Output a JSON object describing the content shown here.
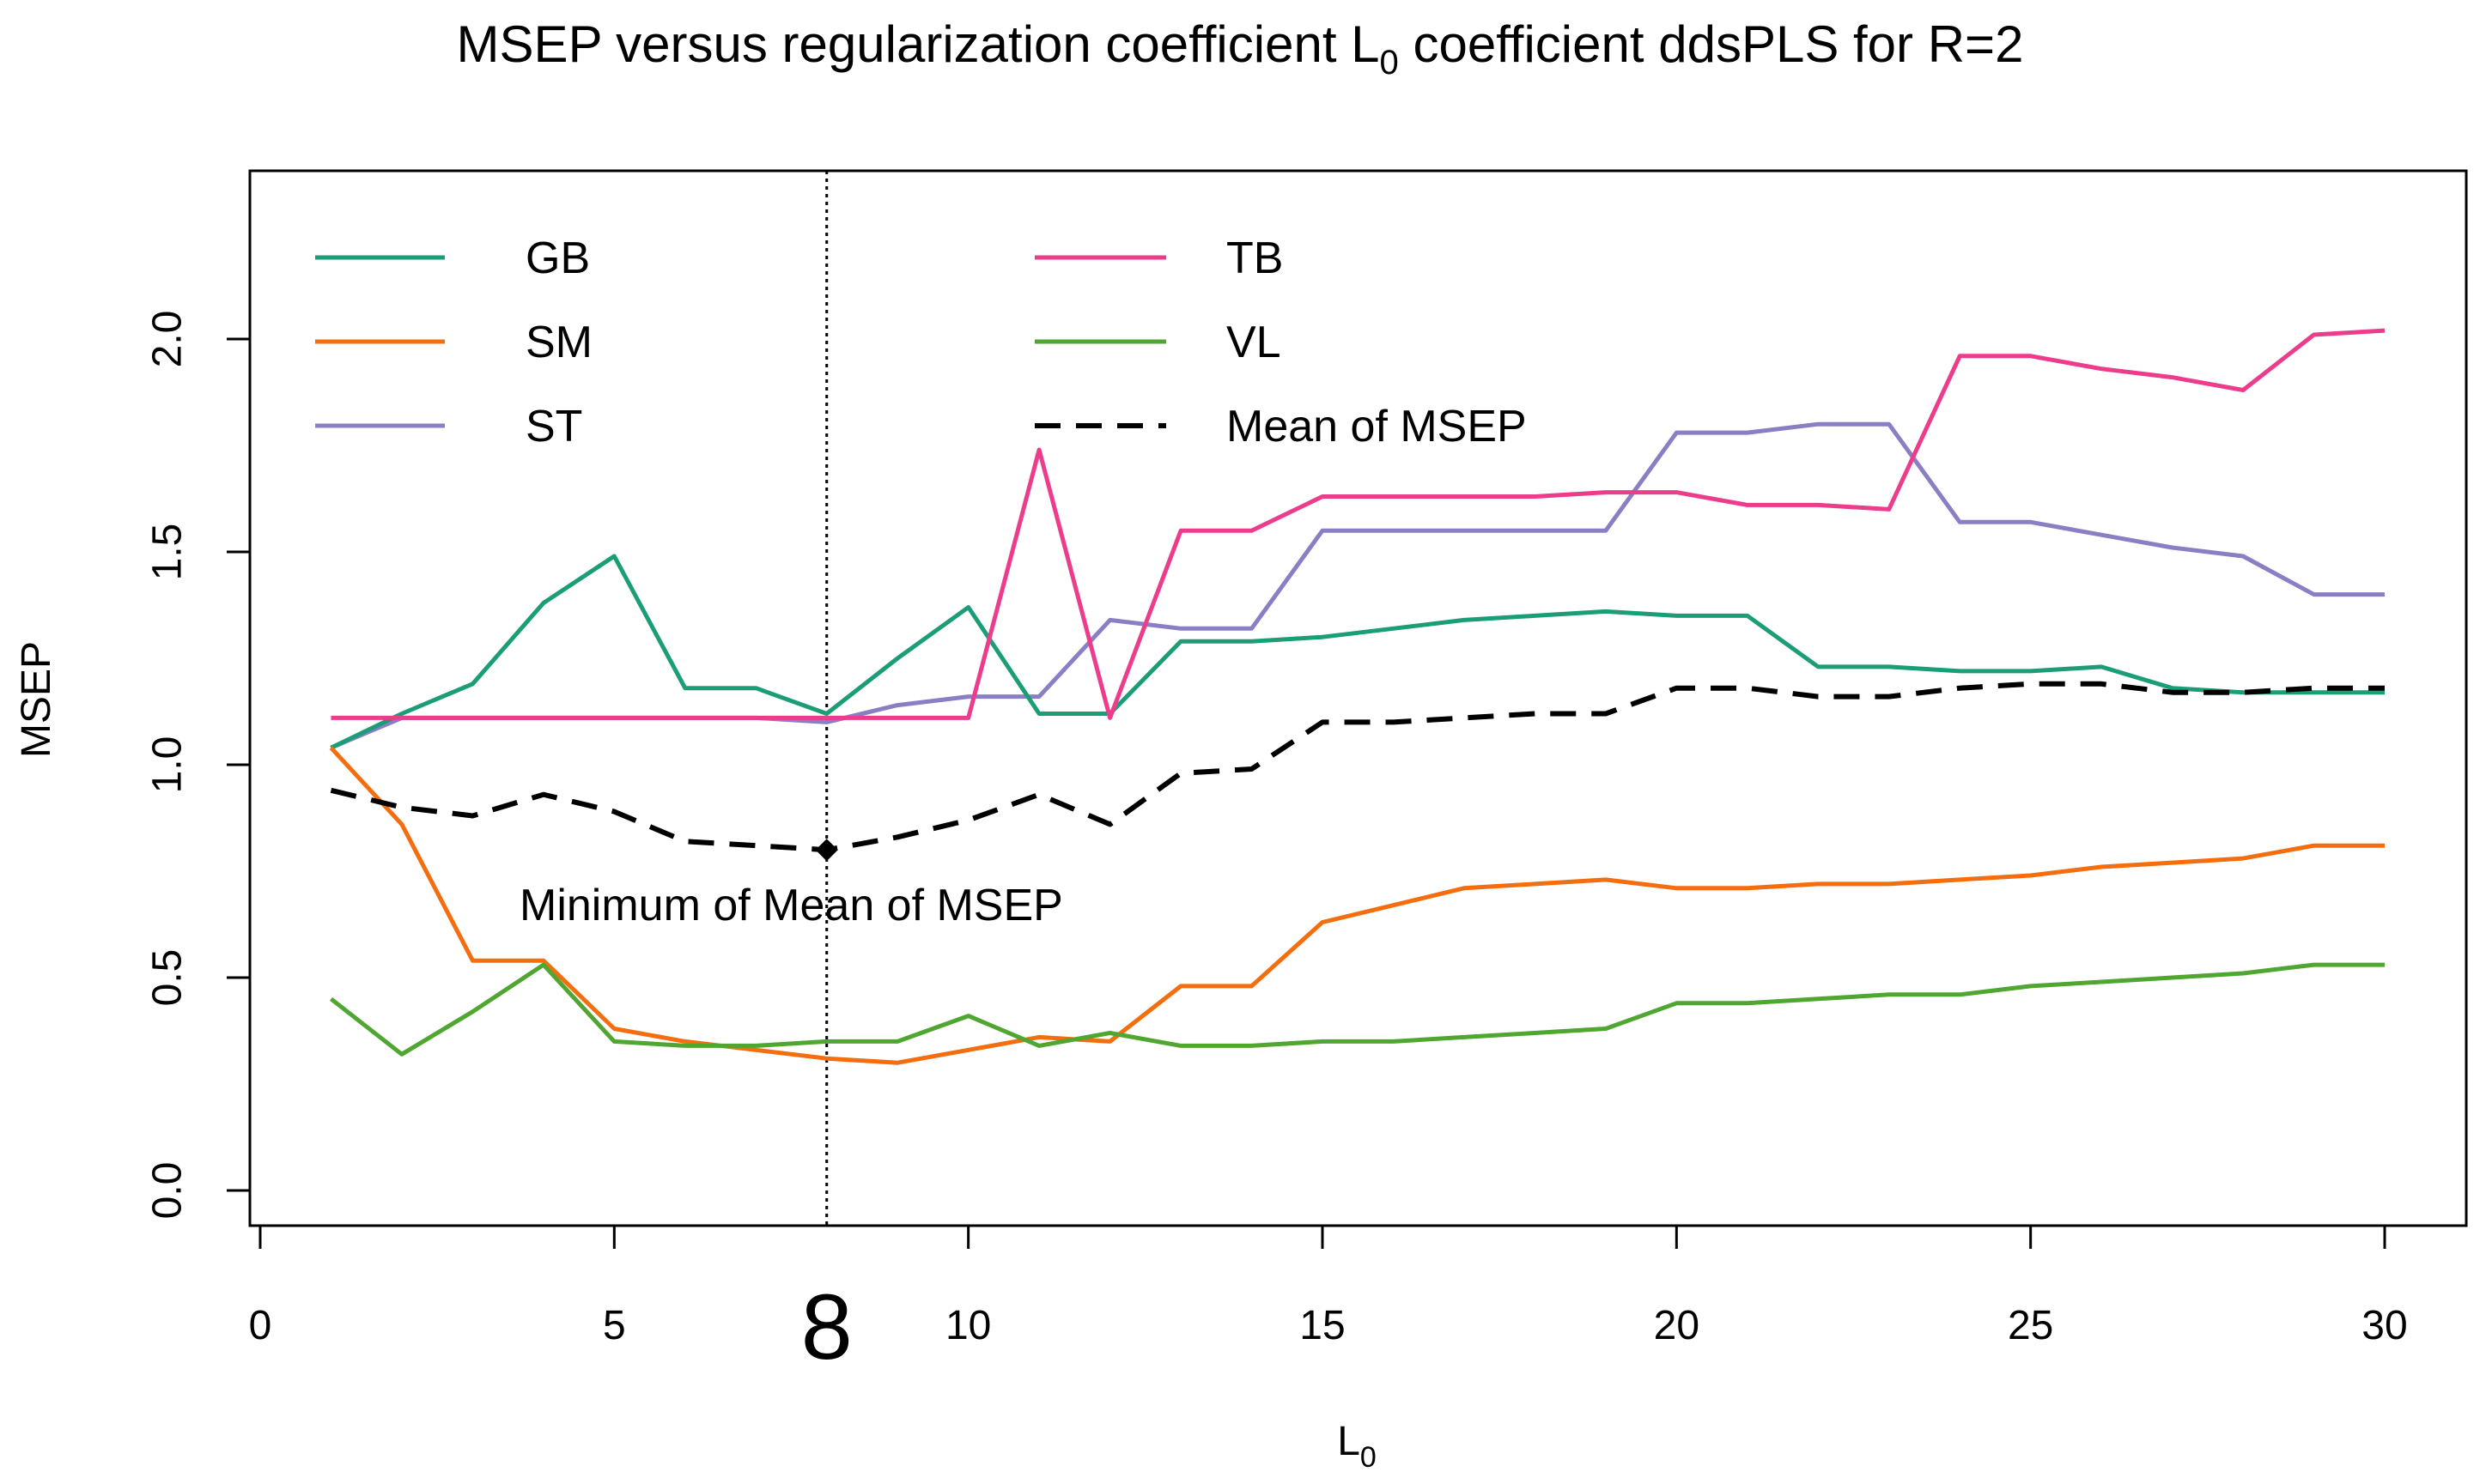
{
  "chart_data": {
    "type": "line",
    "title_main": "MSEP versus regularization coefficient L",
    "title_sub": "0",
    "title_rest": " coefficient ddsPLS for R=2",
    "xlabel_main": "L",
    "xlabel_sub": "0",
    "ylabel": "MSEP",
    "xlim": [
      0,
      31
    ],
    "ylim": [
      -0.1,
      2.4
    ],
    "xticks": [
      "0",
      "5",
      "10",
      "15",
      "20",
      "25",
      "30"
    ],
    "xtick_values": [
      0,
      5,
      10,
      15,
      20,
      25,
      30
    ],
    "yticks": [
      "0.0",
      "0.5",
      "1.0",
      "1.5",
      "2.0"
    ],
    "ytick_values": [
      0,
      0.5,
      1.0,
      1.5,
      2.0
    ],
    "highlight_x": 8,
    "highlight_label": "8",
    "minimum_point": {
      "x": 8,
      "y": 0.8
    },
    "minimum_label": "Minimum of Mean of MSEP",
    "x": [
      1,
      2,
      3,
      4,
      5,
      6,
      7,
      8,
      9,
      10,
      11,
      12,
      13,
      14,
      15,
      16,
      17,
      18,
      19,
      20,
      21,
      22,
      23,
      24,
      25,
      26,
      27,
      28,
      29,
      30
    ],
    "series": [
      {
        "name": "GB",
        "color": "#1b9e77",
        "dash": false,
        "values": [
          1.04,
          1.12,
          1.19,
          1.38,
          1.49,
          1.18,
          1.18,
          1.12,
          1.25,
          1.37,
          1.12,
          1.12,
          1.29,
          1.29,
          1.3,
          1.32,
          1.34,
          1.35,
          1.36,
          1.35,
          1.35,
          1.23,
          1.23,
          1.22,
          1.22,
          1.23,
          1.18,
          1.17,
          1.17,
          1.17
        ]
      },
      {
        "name": "SM",
        "color": "#f46d0e",
        "dash": false,
        "values": [
          1.04,
          0.86,
          0.54,
          0.54,
          0.38,
          0.35,
          0.33,
          0.31,
          0.3,
          0.33,
          0.36,
          0.35,
          0.48,
          0.48,
          0.63,
          0.67,
          0.71,
          0.72,
          0.73,
          0.71,
          0.71,
          0.72,
          0.72,
          0.73,
          0.74,
          0.76,
          0.77,
          0.78,
          0.81,
          0.81
        ]
      },
      {
        "name": "ST",
        "color": "#8b7ec4",
        "dash": false,
        "values": [
          1.04,
          1.11,
          1.11,
          1.11,
          1.11,
          1.11,
          1.11,
          1.1,
          1.14,
          1.16,
          1.16,
          1.34,
          1.32,
          1.32,
          1.55,
          1.55,
          1.55,
          1.55,
          1.55,
          1.78,
          1.78,
          1.8,
          1.8,
          1.57,
          1.57,
          1.54,
          1.51,
          1.49,
          1.4,
          1.4
        ]
      },
      {
        "name": "TB",
        "color": "#ec3c8c",
        "dash": false,
        "values": [
          1.11,
          1.11,
          1.11,
          1.11,
          1.11,
          1.11,
          1.11,
          1.11,
          1.11,
          1.11,
          1.74,
          1.11,
          1.55,
          1.55,
          1.63,
          1.63,
          1.63,
          1.63,
          1.64,
          1.64,
          1.61,
          1.61,
          1.6,
          1.96,
          1.96,
          1.93,
          1.91,
          1.88,
          2.01,
          2.02
        ]
      },
      {
        "name": "VL",
        "color": "#4fa630",
        "dash": false,
        "values": [
          0.45,
          0.32,
          0.42,
          0.53,
          0.35,
          0.34,
          0.34,
          0.35,
          0.35,
          0.41,
          0.34,
          0.37,
          0.34,
          0.34,
          0.35,
          0.35,
          0.36,
          0.37,
          0.38,
          0.44,
          0.44,
          0.45,
          0.46,
          0.46,
          0.48,
          0.49,
          0.5,
          0.51,
          0.53,
          0.53
        ]
      },
      {
        "name": "Mean of MSEP",
        "color": "#000000",
        "dash": true,
        "values": [
          0.94,
          0.9,
          0.88,
          0.93,
          0.89,
          0.82,
          0.81,
          0.8,
          0.83,
          0.87,
          0.93,
          0.86,
          0.98,
          0.99,
          1.1,
          1.1,
          1.11,
          1.12,
          1.12,
          1.18,
          1.18,
          1.16,
          1.16,
          1.18,
          1.19,
          1.19,
          1.17,
          1.17,
          1.18,
          1.18
        ]
      }
    ],
    "legend_position": "top-left"
  }
}
